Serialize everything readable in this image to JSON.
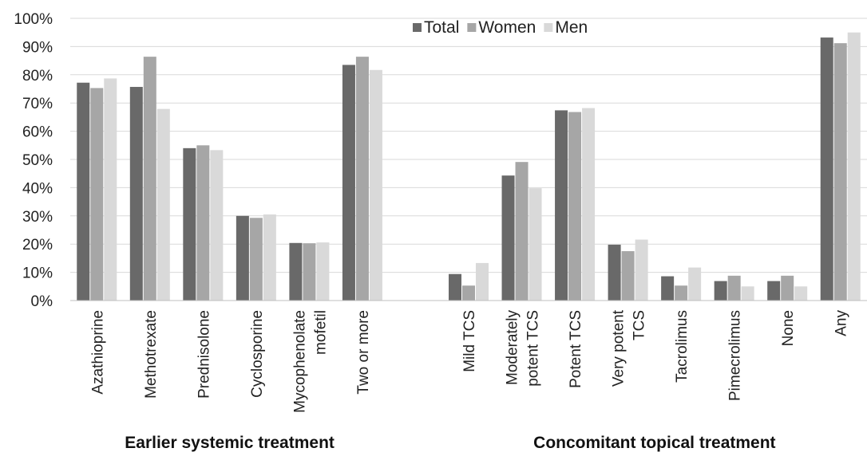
{
  "chart_data": {
    "type": "bar",
    "ylim": [
      0,
      100
    ],
    "ytick_step": 10,
    "ytick_suffix": "%",
    "grid": true,
    "legend_placement": "top-center",
    "categories": [
      "Azathioprine",
      "Methotrexate",
      "Prednisolone",
      "Cyclosporine",
      "Mycophenolate\nmofetil",
      "Two or more",
      "",
      "Mild TCS",
      "Moderately\npotent TCS",
      "Potent TCS",
      "Very potent\nTCS",
      "Tacrolimus",
      "Pimecrolimus",
      "None",
      "Any"
    ],
    "series": [
      {
        "name": "Total",
        "color": "#696969",
        "values": [
          77.2,
          75.7,
          54.0,
          30.0,
          20.4,
          83.5,
          null,
          9.4,
          44.3,
          67.4,
          19.8,
          8.6,
          6.9,
          6.9,
          93.2
        ]
      },
      {
        "name": "Women",
        "color": "#a6a6a6",
        "values": [
          75.3,
          86.4,
          55.0,
          29.3,
          20.3,
          86.4,
          null,
          5.3,
          49.1,
          66.8,
          17.5,
          5.3,
          8.8,
          8.8,
          91.2
        ]
      },
      {
        "name": "Men",
        "color": "#d9d9d9",
        "values": [
          78.7,
          67.9,
          53.3,
          30.5,
          20.6,
          81.7,
          null,
          13.3,
          39.8,
          68.2,
          21.6,
          11.7,
          5.0,
          5.0,
          95.0
        ]
      }
    ],
    "groups": [
      {
        "label": "Earlier systemic treatment",
        "from": 0,
        "to": 5
      },
      {
        "label": "Concomitant topical treatment",
        "from": 7,
        "to": 14
      }
    ]
  }
}
